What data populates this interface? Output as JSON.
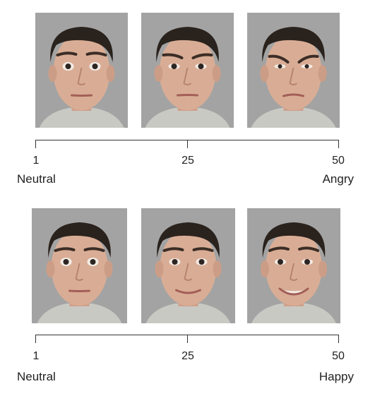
{
  "scales": [
    {
      "faces": [
        {
          "expression": "neutral"
        },
        {
          "expression": "mild-angry"
        },
        {
          "expression": "angry"
        }
      ],
      "ticks": [
        "1",
        "25",
        "50"
      ],
      "left_label": "Neutral",
      "right_label": "Angry"
    },
    {
      "faces": [
        {
          "expression": "neutral"
        },
        {
          "expression": "mild-happy"
        },
        {
          "expression": "happy"
        }
      ],
      "ticks": [
        "1",
        "25",
        "50"
      ],
      "left_label": "Neutral",
      "right_label": "Happy"
    }
  ],
  "colors": {
    "background": "#a3a3a3",
    "skin": "#d9ad95",
    "hair": "#2a221d",
    "shirt": "#c9c9c4",
    "line": "#333333"
  }
}
